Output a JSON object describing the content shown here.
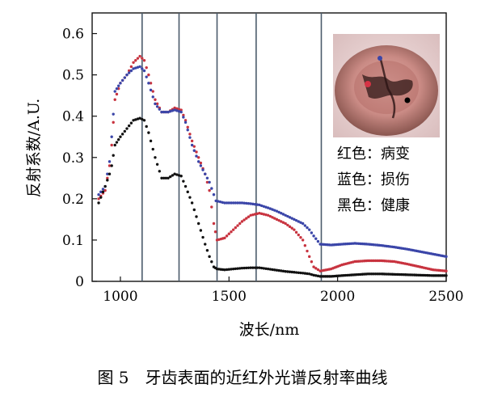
{
  "chart_data": {
    "type": "scatter",
    "xlabel": "波长/nm",
    "ylabel": "反射系数/A.U.",
    "xlim": [
      870,
      2500
    ],
    "ylim": [
      0,
      0.65
    ],
    "x_ticks": [
      1000,
      1500,
      2000,
      2500
    ],
    "x_tick_labels": [
      "1000",
      "1500",
      "2000",
      "2500"
    ],
    "y_ticks": [
      0,
      0.1,
      0.2,
      0.3,
      0.4,
      0.5,
      0.6
    ],
    "y_tick_labels": [
      "0",
      "0.1",
      "0.2",
      "0.3",
      "0.4",
      "0.5",
      "0.6"
    ],
    "vertical_reference_lines": [
      1100,
      1270,
      1445,
      1625,
      1925
    ],
    "series": [
      {
        "color": "#c8333f",
        "points": [
          [
            900,
            0.2
          ],
          [
            930,
            0.22
          ],
          [
            950,
            0.28
          ],
          [
            960,
            0.33
          ],
          [
            975,
            0.44
          ],
          [
            1000,
            0.48
          ],
          [
            1030,
            0.5
          ],
          [
            1060,
            0.53
          ],
          [
            1090,
            0.545
          ],
          [
            1110,
            0.535
          ],
          [
            1130,
            0.5
          ],
          [
            1160,
            0.44
          ],
          [
            1190,
            0.41
          ],
          [
            1220,
            0.41
          ],
          [
            1250,
            0.42
          ],
          [
            1280,
            0.415
          ],
          [
            1300,
            0.39
          ],
          [
            1330,
            0.34
          ],
          [
            1360,
            0.3
          ],
          [
            1390,
            0.26
          ],
          [
            1410,
            0.22
          ],
          [
            1430,
            0.14
          ],
          [
            1445,
            0.1
          ],
          [
            1480,
            0.105
          ],
          [
            1520,
            0.125
          ],
          [
            1560,
            0.145
          ],
          [
            1600,
            0.16
          ],
          [
            1640,
            0.165
          ],
          [
            1680,
            0.16
          ],
          [
            1720,
            0.15
          ],
          [
            1760,
            0.14
          ],
          [
            1800,
            0.125
          ],
          [
            1840,
            0.1
          ],
          [
            1870,
            0.06
          ],
          [
            1890,
            0.035
          ],
          [
            1920,
            0.025
          ],
          [
            1970,
            0.03
          ],
          [
            2020,
            0.04
          ],
          [
            2080,
            0.048
          ],
          [
            2140,
            0.05
          ],
          [
            2200,
            0.05
          ],
          [
            2260,
            0.048
          ],
          [
            2320,
            0.042
          ],
          [
            2380,
            0.035
          ],
          [
            2440,
            0.028
          ],
          [
            2500,
            0.025
          ]
        ]
      },
      {
        "color": "#3a45a8",
        "points": [
          [
            900,
            0.21
          ],
          [
            930,
            0.23
          ],
          [
            950,
            0.29
          ],
          [
            960,
            0.35
          ],
          [
            975,
            0.46
          ],
          [
            1000,
            0.48
          ],
          [
            1030,
            0.5
          ],
          [
            1060,
            0.515
          ],
          [
            1090,
            0.52
          ],
          [
            1110,
            0.51
          ],
          [
            1130,
            0.48
          ],
          [
            1160,
            0.43
          ],
          [
            1190,
            0.41
          ],
          [
            1220,
            0.41
          ],
          [
            1250,
            0.415
          ],
          [
            1280,
            0.41
          ],
          [
            1300,
            0.385
          ],
          [
            1330,
            0.33
          ],
          [
            1360,
            0.29
          ],
          [
            1390,
            0.26
          ],
          [
            1410,
            0.24
          ],
          [
            1440,
            0.195
          ],
          [
            1480,
            0.19
          ],
          [
            1520,
            0.19
          ],
          [
            1560,
            0.19
          ],
          [
            1600,
            0.188
          ],
          [
            1640,
            0.185
          ],
          [
            1680,
            0.178
          ],
          [
            1720,
            0.17
          ],
          [
            1760,
            0.16
          ],
          [
            1800,
            0.15
          ],
          [
            1840,
            0.14
          ],
          [
            1870,
            0.125
          ],
          [
            1890,
            0.11
          ],
          [
            1920,
            0.09
          ],
          [
            1970,
            0.088
          ],
          [
            2020,
            0.09
          ],
          [
            2080,
            0.092
          ],
          [
            2140,
            0.09
          ],
          [
            2200,
            0.087
          ],
          [
            2260,
            0.083
          ],
          [
            2320,
            0.078
          ],
          [
            2380,
            0.072
          ],
          [
            2440,
            0.066
          ],
          [
            2500,
            0.06
          ]
        ]
      },
      {
        "color": "#111111",
        "points": [
          [
            900,
            0.19
          ],
          [
            930,
            0.23
          ],
          [
            950,
            0.26
          ],
          [
            960,
            0.28
          ],
          [
            975,
            0.33
          ],
          [
            1000,
            0.35
          ],
          [
            1030,
            0.37
          ],
          [
            1060,
            0.39
          ],
          [
            1090,
            0.395
          ],
          [
            1110,
            0.39
          ],
          [
            1130,
            0.36
          ],
          [
            1160,
            0.3
          ],
          [
            1190,
            0.25
          ],
          [
            1220,
            0.25
          ],
          [
            1250,
            0.26
          ],
          [
            1280,
            0.255
          ],
          [
            1300,
            0.23
          ],
          [
            1330,
            0.19
          ],
          [
            1360,
            0.14
          ],
          [
            1390,
            0.09
          ],
          [
            1410,
            0.06
          ],
          [
            1430,
            0.035
          ],
          [
            1445,
            0.03
          ],
          [
            1480,
            0.028
          ],
          [
            1520,
            0.03
          ],
          [
            1560,
            0.032
          ],
          [
            1600,
            0.033
          ],
          [
            1640,
            0.033
          ],
          [
            1680,
            0.03
          ],
          [
            1720,
            0.027
          ],
          [
            1760,
            0.024
          ],
          [
            1800,
            0.022
          ],
          [
            1840,
            0.02
          ],
          [
            1870,
            0.018
          ],
          [
            1890,
            0.015
          ],
          [
            1920,
            0.012
          ],
          [
            1970,
            0.012
          ],
          [
            2020,
            0.014
          ],
          [
            2080,
            0.016
          ],
          [
            2140,
            0.018
          ],
          [
            2200,
            0.018
          ],
          [
            2260,
            0.017
          ],
          [
            2320,
            0.016
          ],
          [
            2380,
            0.015
          ],
          [
            2440,
            0.014
          ],
          [
            2500,
            0.014
          ]
        ]
      }
    ]
  },
  "inset": {
    "legend": [
      {
        "label": "红色：病变",
        "color": "#c8333f"
      },
      {
        "label": "蓝色：损伤",
        "color": "#3a45a8"
      },
      {
        "label": "黑色：健康",
        "color": "#111111"
      }
    ]
  },
  "caption": "图 5　牙齿表面的近红外光谱反射率曲线"
}
